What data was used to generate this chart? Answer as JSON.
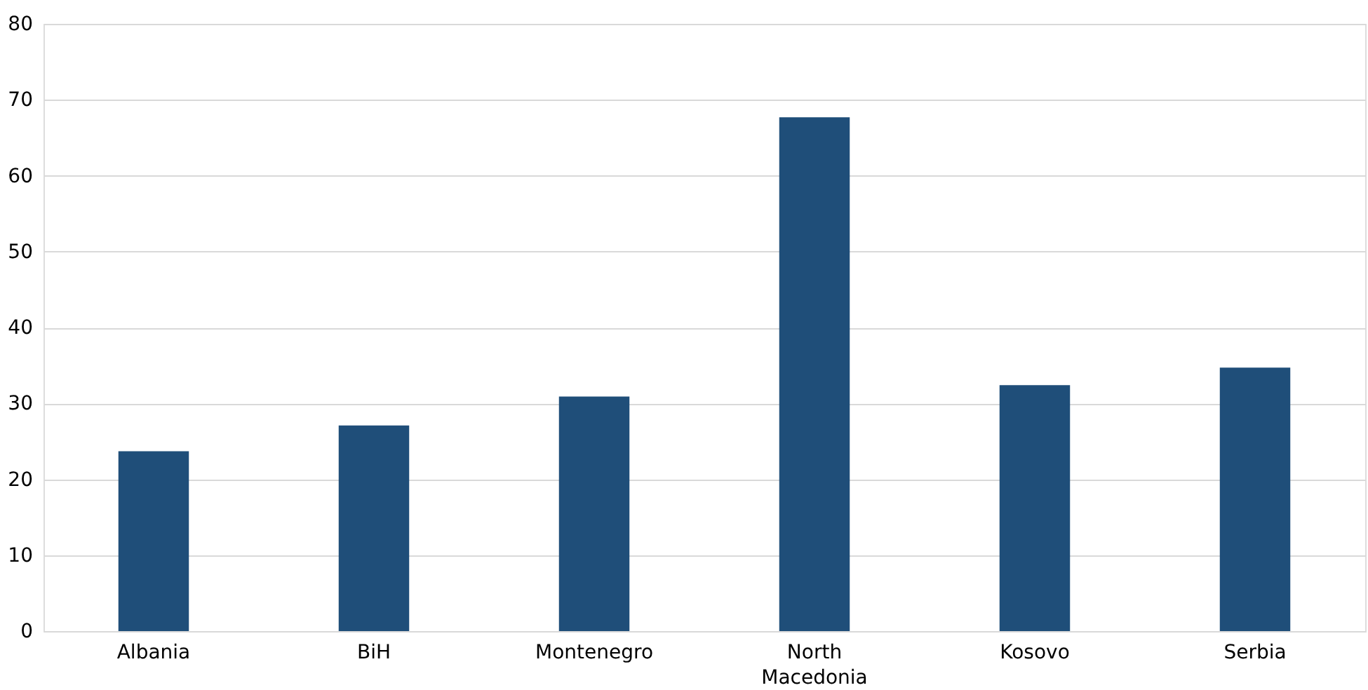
{
  "chart_data": {
    "type": "bar",
    "categories": [
      "Albania",
      "BiH",
      "Montenegro",
      "North Macedonia",
      "Kosovo",
      "Serbia"
    ],
    "values": [
      23.7,
      27.1,
      30.9,
      67.7,
      32.4,
      34.7
    ],
    "color": "#1f4e79",
    "ylim": [
      0,
      80
    ],
    "yticks": [
      0,
      10,
      20,
      30,
      40,
      50,
      60,
      70,
      80
    ],
    "grid": "y"
  }
}
